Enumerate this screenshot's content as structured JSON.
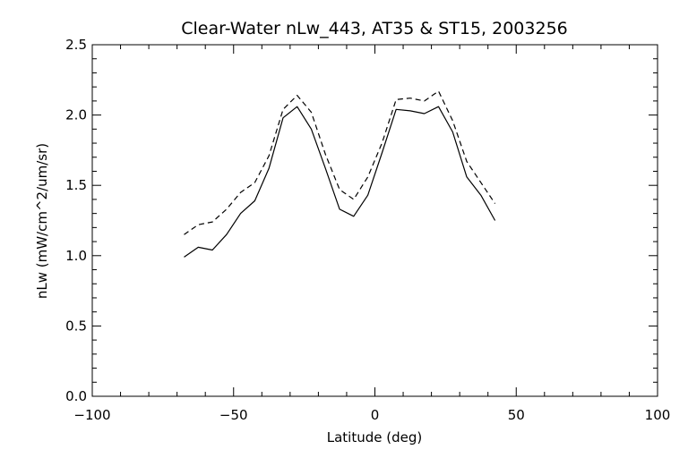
{
  "chart_data": {
    "type": "line",
    "title": "Clear-Water nLw_443, AT35 & ST15, 2003256",
    "xlabel": "Latitude (deg)",
    "ylabel": "nLw (mW/cm^2/um/sr)",
    "xlim": [
      -100,
      100
    ],
    "ylim": [
      0.0,
      2.5
    ],
    "x_ticks": [
      -100,
      -50,
      0,
      50,
      100
    ],
    "x_tick_labels": [
      "−100",
      "−50",
      "0",
      "50",
      "100"
    ],
    "y_ticks": [
      0.0,
      0.5,
      1.0,
      1.5,
      2.0,
      2.5
    ],
    "y_tick_labels": [
      "0.0",
      "0.5",
      "1.0",
      "1.5",
      "2.0",
      "2.5"
    ],
    "grid": false,
    "legend": "none",
    "series": [
      {
        "style": "solid",
        "color": "#000000",
        "x": [
          -67.5,
          -62.5,
          -57.5,
          -52.5,
          -47.5,
          -42.5,
          -37.5,
          -32.5,
          -27.5,
          -22.5,
          -17.5,
          -12.5,
          -7.5,
          -2.5,
          2.5,
          7.5,
          12.5,
          17.5,
          22.5,
          27.5,
          32.5,
          37.5,
          42.5
        ],
        "y": [
          0.99,
          1.06,
          1.04,
          1.15,
          1.3,
          1.39,
          1.62,
          1.98,
          2.06,
          1.9,
          1.62,
          1.33,
          1.28,
          1.43,
          1.73,
          2.04,
          2.03,
          2.01,
          2.06,
          1.88,
          1.56,
          1.43,
          1.25
        ]
      },
      {
        "style": "dashed",
        "color": "#000000",
        "x": [
          -67.5,
          -62.5,
          -57.5,
          -52.5,
          -47.5,
          -42.5,
          -37.5,
          -32.5,
          -27.5,
          -22.5,
          -17.5,
          -12.5,
          -7.5,
          -2.5,
          2.5,
          7.5,
          12.5,
          17.5,
          22.5,
          27.5,
          32.5,
          37.5,
          42.5
        ],
        "y": [
          1.15,
          1.22,
          1.24,
          1.33,
          1.45,
          1.52,
          1.71,
          2.04,
          2.14,
          2.02,
          1.72,
          1.47,
          1.4,
          1.56,
          1.8,
          2.11,
          2.12,
          2.1,
          2.17,
          1.96,
          1.67,
          1.52,
          1.37
        ]
      }
    ]
  }
}
